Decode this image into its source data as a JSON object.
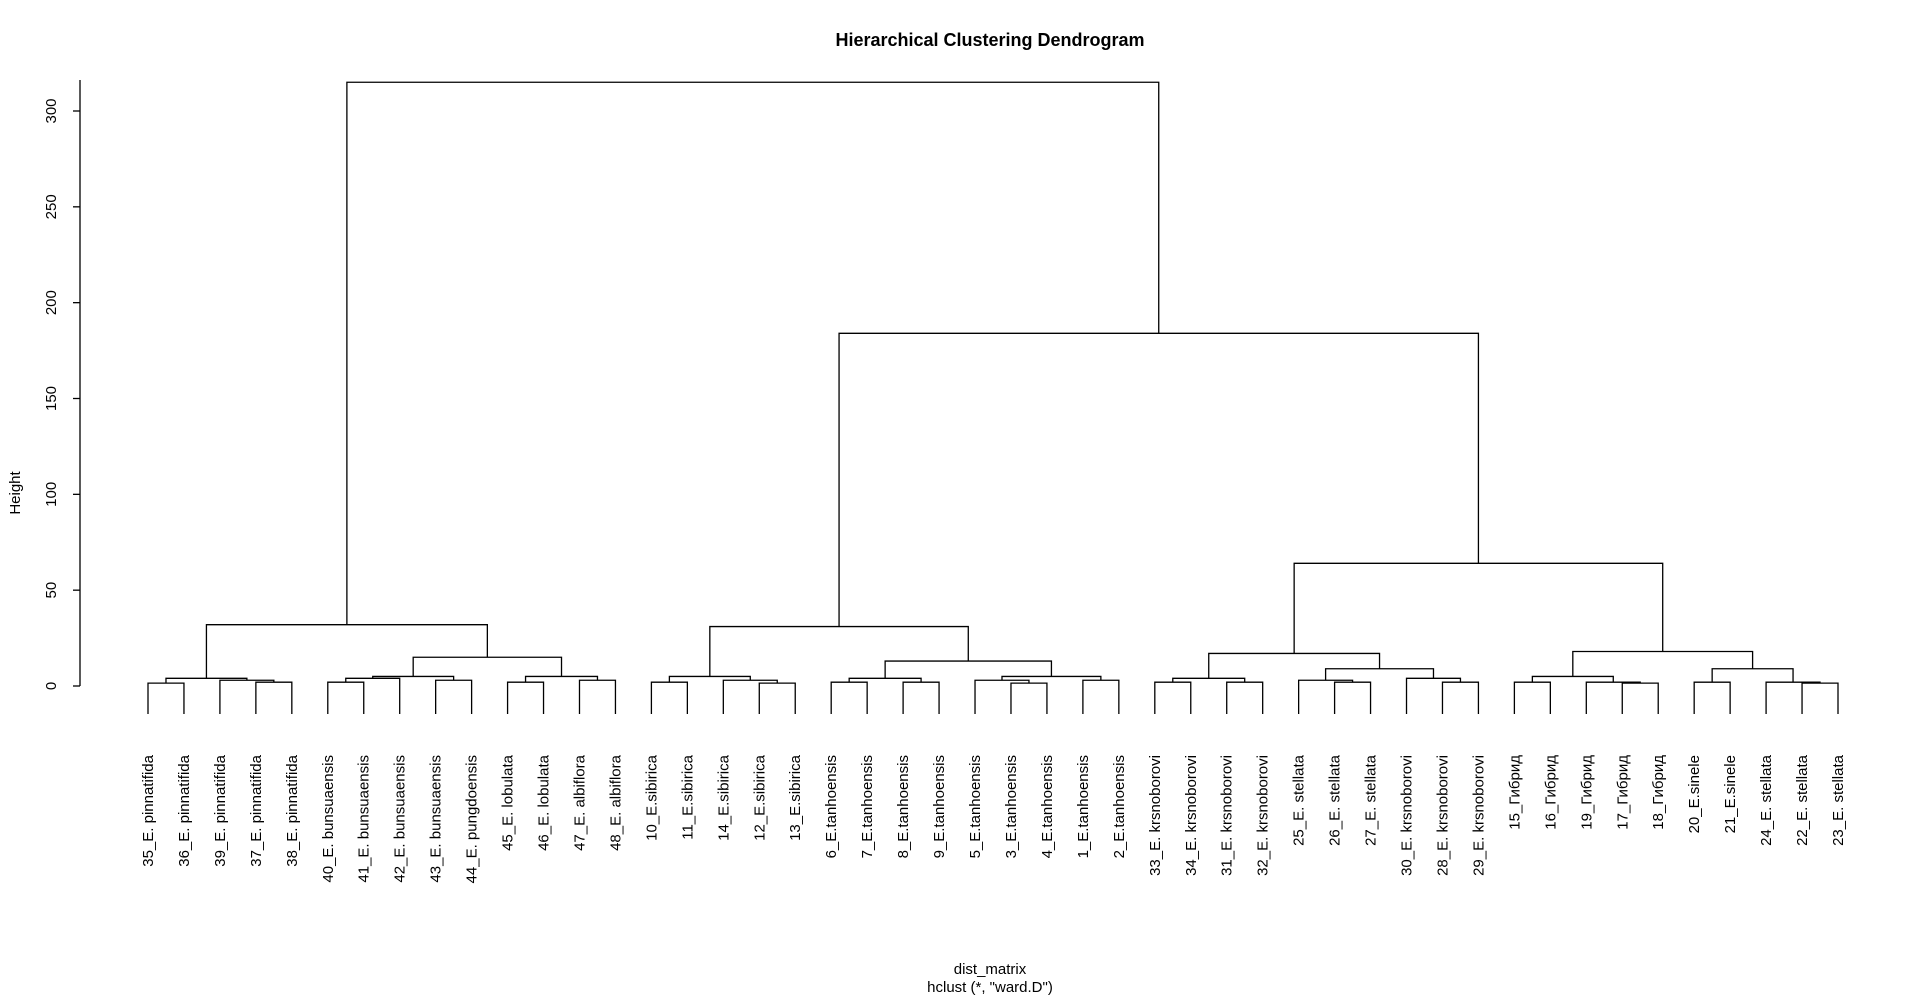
{
  "chart_data": {
    "type": "dendrogram",
    "title": "Hierarchical Clustering Dendrogram",
    "xlabel": "dist_matrix",
    "subtitle": "hclust (*, \"ward.D\")",
    "ylabel": "Height",
    "ylim": [
      0,
      330
    ],
    "yticks": [
      "0",
      "50",
      "100",
      "150",
      "200",
      "250",
      "300"
    ],
    "leaves": [
      "35_E. pinnatifida",
      "36_E. pinnatifida",
      "39_E. pinnatifida",
      "37_E. pinnatifida",
      "38_E. pinnatifida",
      "40_E. bunsuaensis",
      "41_E. bunsuaensis",
      "42_E. bunsuaensis",
      "43_E. bunsuaensis",
      "44_E. pungdoensis",
      "45_E. lobulata",
      "46_E. lobulata",
      "47_E. albiflora",
      "48_E. albiflora",
      "10_E.sibirica",
      "11_E.sibirica",
      "14_E.sibirica",
      "12_E.sibirica",
      "13_E.sibirica",
      "6_E.tanhoensis",
      "7_E.tanhoensis",
      "8_E.tanhoensis",
      "9_E.tanhoensis",
      "5_E.tanhoensis",
      "3_E.tanhoensis",
      "4_E.tanhoensis",
      "1_E.tanhoensis",
      "2_E.tanhoensis",
      "33_E. krsnoborovi",
      "34_E. krsnoborovi",
      "31_E. krsnoborovi",
      "32_E. krsnoborovi",
      "25_E. stellata",
      "26_E. stellata",
      "27_E. stellata",
      "30_E. krsnoborovi",
      "28_E. krsnoborovi",
      "29_E. krsnoborovi",
      "15_Гибрид",
      "16_Гибрид",
      "19_Гибрид",
      "17_Гибрид",
      "18_Гибрид",
      "20_E.sinele",
      "21_E.sinele",
      "24_E. stellata",
      "22_E. stellata",
      "23_E. stellata"
    ],
    "merges": [
      {
        "a": 0,
        "b": 1,
        "height": 1.5
      },
      {
        "a": 3,
        "b": 4,
        "height": 2
      },
      {
        "a": 2,
        "b": "m1",
        "height": 3
      },
      {
        "a": "m0",
        "b": "m2",
        "height": 4
      },
      {
        "a": 5,
        "b": 6,
        "height": 2
      },
      {
        "a": 8,
        "b": 9,
        "height": 3
      },
      {
        "a": "m4",
        "b": 7,
        "height": 4
      },
      {
        "a": "m6",
        "b": "m5",
        "height": 5
      },
      {
        "a": 10,
        "b": 11,
        "height": 2
      },
      {
        "a": 12,
        "b": 13,
        "height": 3
      },
      {
        "a": "m8",
        "b": "m9",
        "height": 5
      },
      {
        "a": "m7",
        "b": "m10",
        "height": 15
      },
      {
        "a": "m3",
        "b": "m11",
        "height": 32
      },
      {
        "a": 14,
        "b": 15,
        "height": 2
      },
      {
        "a": 17,
        "b": 18,
        "height": 1.5
      },
      {
        "a": 16,
        "b": "m14",
        "height": 3
      },
      {
        "a": "m13",
        "b": "m15",
        "height": 5
      },
      {
        "a": 19,
        "b": 20,
        "height": 2
      },
      {
        "a": 21,
        "b": 22,
        "height": 2
      },
      {
        "a": "m17",
        "b": "m18",
        "height": 4
      },
      {
        "a": 24,
        "b": 25,
        "height": 1.5
      },
      {
        "a": 23,
        "b": "m20",
        "height": 3
      },
      {
        "a": 26,
        "b": 27,
        "height": 3
      },
      {
        "a": "m21",
        "b": "m22",
        "height": 5
      },
      {
        "a": "m19",
        "b": "m23",
        "height": 13
      },
      {
        "a": "m16",
        "b": "m24",
        "height": 31
      },
      {
        "a": 28,
        "b": 29,
        "height": 2
      },
      {
        "a": 30,
        "b": 31,
        "height": 2
      },
      {
        "a": "m26",
        "b": "m27",
        "height": 4
      },
      {
        "a": 33,
        "b": 34,
        "height": 2
      },
      {
        "a": 32,
        "b": "m29",
        "height": 3
      },
      {
        "a": 36,
        "b": 37,
        "height": 2
      },
      {
        "a": 35,
        "b": "m31",
        "height": 4
      },
      {
        "a": "m30",
        "b": "m32",
        "height": 9
      },
      {
        "a": "m28",
        "b": "m33",
        "height": 17
      },
      {
        "a": 41,
        "b": 42,
        "height": 1.5
      },
      {
        "a": 40,
        "b": "m35",
        "height": 2
      },
      {
        "a": 38,
        "b": 39,
        "height": 2
      },
      {
        "a": "m37",
        "b": "m36",
        "height": 5
      },
      {
        "a": 46,
        "b": 47,
        "height": 1.5
      },
      {
        "a": 45,
        "b": "m39",
        "height": 2
      },
      {
        "a": 43,
        "b": 44,
        "height": 2
      },
      {
        "a": "m41",
        "b": "m40",
        "height": 9
      },
      {
        "a": "m38",
        "b": "m42",
        "height": 18
      },
      {
        "a": "m34",
        "b": "m43",
        "height": 64
      },
      {
        "a": "m25",
        "b": "m44",
        "height": 184
      },
      {
        "a": "m12",
        "b": "m45",
        "height": 315
      }
    ]
  }
}
